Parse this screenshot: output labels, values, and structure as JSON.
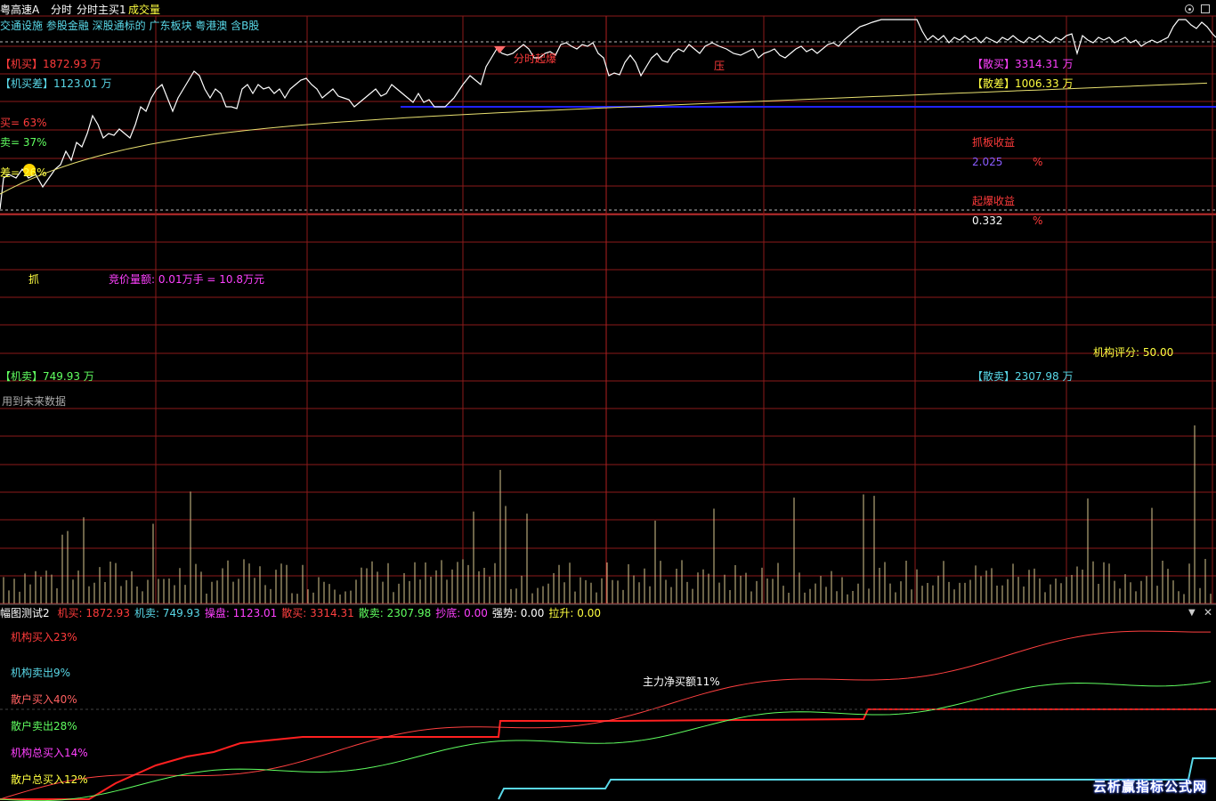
{
  "header": {
    "stock_name": "粤高速A",
    "period": "分时",
    "indicator": "分时主买1",
    "volume_label": "成交量",
    "tags": "交通设施 参股金融 深股通标的 广东板块 粤港澳 含B股"
  },
  "main_panel": {
    "inst_buy": "【机买】1872.93 万",
    "inst_diff": "【机买差】1123.01 万",
    "buy_pct": "买= 63%",
    "sell_pct": "卖= 37%",
    "diff_pct": "差= 26%",
    "breakout_label": "分时起爆",
    "press_label": "压",
    "retail_buy": "【散买】3314.31 万",
    "retail_diff": "【散差】1006.33 万",
    "limit_profit_label": "抓板收益",
    "limit_profit_value": "2.025",
    "pct_sign": "%",
    "breakout_profit_label": "起爆收益",
    "breakout_profit_value": "0.332",
    "grab_label": "抓",
    "auction_label": "竞价量额: 0.01万手 = 10.8万元",
    "score_label": "机构评分: 50.00",
    "inst_sell": "【机卖】749.93 万",
    "retail_sell": "【散卖】2307.98 万",
    "future_data_note": "用到未来数据"
  },
  "bottom_header": {
    "name": "幅图测试2",
    "items": [
      {
        "label": "机买:",
        "value": "1872.93",
        "color": "#ff3b3b"
      },
      {
        "label": "机卖:",
        "value": "749.93",
        "color": "#59d8e8"
      },
      {
        "label": "操盘:",
        "value": "1123.01",
        "color": "#ff40ff"
      },
      {
        "label": "散买:",
        "value": "3314.31",
        "color": "#ff4040"
      },
      {
        "label": "散卖:",
        "value": "2307.98",
        "color": "#60ff60"
      },
      {
        "label": "抄底:",
        "value": "0.00",
        "color": "#ff40ff"
      },
      {
        "label": "强势:",
        "value": "0.00",
        "color": "#ffffff"
      },
      {
        "label": "拉升:",
        "value": "0.00",
        "color": "#ffff40"
      }
    ]
  },
  "bottom_panel": {
    "inst_buy_in": "机构买入23%",
    "inst_sell_out": "机构卖出9%",
    "retail_buy_in": "散户买入40%",
    "retail_sell_out": "散户卖出28%",
    "inst_total_buy": "机构总买入14%",
    "retail_total_buy": "散户总买入12%",
    "main_net_buy": "主力净买额11%"
  },
  "watermark": "云析赢指标公式网",
  "icons": [
    "target-icon",
    "minimize-icon",
    "dropdown-icon",
    "close-icon",
    "smiley-icon",
    "flag-icon"
  ],
  "colors": {
    "grid": "#8b1a1a",
    "price": "#ffffff",
    "avg": "#e8e070",
    "blue_line": "#2222ff",
    "volume": "#d8c890",
    "red": "#ff3b3b",
    "cyan": "#59d8e8",
    "green": "#60ff60",
    "magenta": "#ff40ff",
    "yellow": "#ffff40"
  }
}
